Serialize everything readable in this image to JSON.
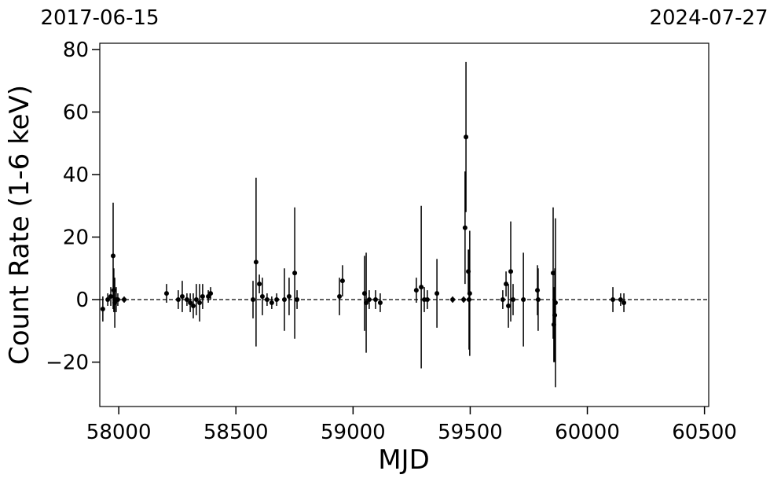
{
  "chart_data": {
    "type": "errorbar_scatter",
    "xlabel": "MJD",
    "ylabel": "Count Rate (1-6 keV)",
    "xlim": [
      57919,
      60518
    ],
    "ylim": [
      -34.2,
      82
    ],
    "xticks": [
      58000,
      58500,
      59000,
      59500,
      60000,
      60500
    ],
    "yticks": [
      {
        "value": -20,
        "label": "−20"
      },
      0,
      20,
      40,
      60,
      80
    ],
    "x2ticks": [
      {
        "value": 57919,
        "label": "2017-06-15"
      },
      {
        "value": 60518,
        "label": "2024-07-27"
      }
    ],
    "hline": 0,
    "series": [
      {
        "color": "#000000",
        "x": [
          57932,
          57953,
          57966,
          57976,
          57979,
          57983,
          57989,
          57996,
          58023,
          58204,
          58254,
          58271,
          58291,
          58305,
          58318,
          58331,
          58345,
          58358,
          58382,
          58392,
          58573,
          58586,
          58600,
          58613,
          58633,
          58653,
          58674,
          58707,
          58727,
          58751,
          58761,
          58942,
          58955,
          59049,
          59056,
          59069,
          59096,
          59116,
          59270,
          59291,
          59304,
          59317,
          59358,
          59425,
          59472,
          59478,
          59482,
          59492,
          59495,
          59498,
          59639,
          59653,
          59663,
          59673,
          59683,
          59727,
          59787,
          59790,
          59854,
          59857,
          59861,
          59864,
          60109,
          60142,
          60156
        ],
        "values": [
          -3,
          0,
          1,
          14,
          3,
          -1,
          0,
          0,
          0,
          2,
          0,
          1,
          0,
          -1,
          -2,
          0,
          -1,
          1,
          1,
          2,
          0,
          12,
          5,
          1,
          0,
          -1,
          0,
          0,
          1,
          8.5,
          0,
          1,
          6,
          2,
          -1,
          0,
          0,
          -1,
          3,
          4,
          0,
          0,
          2,
          0,
          0,
          23,
          52,
          9,
          0,
          2,
          0,
          5,
          -2,
          9,
          0,
          0,
          3,
          0,
          8.5,
          -8,
          -5,
          -1,
          0,
          0,
          -1
        ],
        "errors": [
          4,
          2,
          3,
          17,
          7,
          8,
          4,
          2,
          1,
          3,
          3,
          5,
          2,
          3,
          4,
          5,
          6,
          4,
          2,
          2,
          6,
          27,
          3,
          6,
          2,
          2,
          2,
          10,
          6,
          21,
          3,
          6,
          5,
          12,
          16,
          3,
          3,
          3,
          4,
          26,
          4,
          3,
          11,
          1,
          1,
          18,
          24,
          7,
          16,
          20,
          3,
          4,
          7,
          16,
          5,
          15,
          8,
          10,
          21,
          12,
          15,
          27,
          4,
          2,
          3
        ]
      }
    ]
  }
}
